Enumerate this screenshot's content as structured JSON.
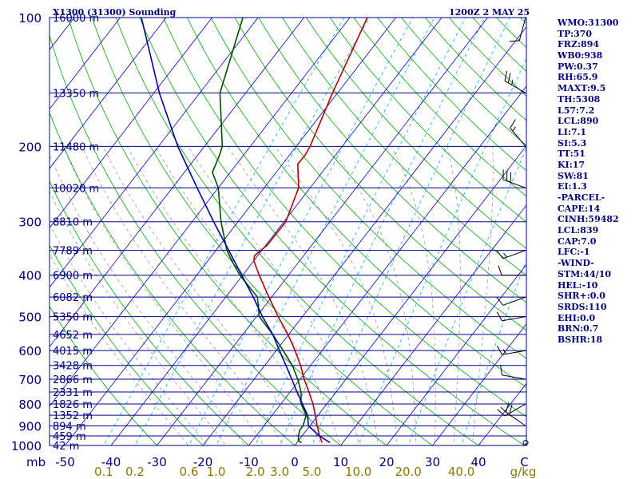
{
  "header": {
    "station_title": "X1300 (31300) Sounding",
    "valid_time": "1200Z  2 MAY 25"
  },
  "indices": [
    "WMO:31300",
    "TP:370",
    "FRZ:894",
    "WB0:938",
    "PW:0.37",
    "RH:65.9",
    "MAXT:9.5",
    "TH:5308",
    "L57:7.2",
    "LCL:890",
    "LI:7.1",
    "SI:5.3",
    "TT:51",
    "KI:17",
    "SW:81",
    "EI:1.3",
    "-PARCEL-",
    "CAPE:14",
    "CINH:59482",
    "LCL:839",
    "CAP:7.0",
    "LFC:-1",
    "-WIND-",
    "STM:44/10",
    "HEL:-10",
    "SHR+:0.0",
    "SRDS:110",
    "EHI:0.0",
    "BRN:0.7",
    "BSHR:18"
  ],
  "chart_data": {
    "type": "line",
    "chart_kind": "skew-T log-P sounding",
    "y_axis": {
      "label": "mb",
      "scale": "log",
      "range": [
        1000,
        100
      ],
      "pressure_ticks": [
        100,
        200,
        300,
        400,
        500,
        600,
        700,
        800,
        900,
        1000
      ],
      "height_labels": [
        {
          "p": 100,
          "label": "16000 m"
        },
        {
          "p": 150,
          "label": "13350 m"
        },
        {
          "p": 200,
          "label": "11480 m"
        },
        {
          "p": 250,
          "label": "10020 m"
        },
        {
          "p": 300,
          "label": "8810 m"
        },
        {
          "p": 350,
          "label": "7789 m"
        },
        {
          "p": 400,
          "label": "6900 m"
        },
        {
          "p": 450,
          "label": "6082 m"
        },
        {
          "p": 500,
          "label": "5350 m"
        },
        {
          "p": 550,
          "label": "4652 m"
        },
        {
          "p": 600,
          "label": "4015 m"
        },
        {
          "p": 650,
          "label": "3428 m"
        },
        {
          "p": 700,
          "label": "2866 m"
        },
        {
          "p": 750,
          "label": "2331 m"
        },
        {
          "p": 800,
          "label": "1826 m"
        },
        {
          "p": 850,
          "label": "1352 m"
        },
        {
          "p": 900,
          "label": "894 m"
        },
        {
          "p": 950,
          "label": "459 m"
        },
        {
          "p": 1000,
          "label": "42 m"
        }
      ]
    },
    "x_axis": {
      "temperature_ticks": [
        "-50",
        "-40",
        "-30",
        "-20",
        "-10",
        "0",
        "10",
        "20",
        "30",
        "40",
        "C"
      ],
      "mixing_ratio_ticks": [
        "0.1",
        "0.2",
        "0.6",
        "1.0",
        "2.0",
        "3.0",
        "5.0",
        "10.0",
        "20.0",
        "40.0",
        "g/kg"
      ]
    },
    "series": [
      {
        "color": "#b00000",
        "values": [
          {
            "p": 985,
            "t": 5.5
          },
          {
            "p": 950,
            "t": 3.8
          },
          {
            "p": 900,
            "t": 1.6
          },
          {
            "p": 850,
            "t": -0.6
          },
          {
            "p": 800,
            "t": -3.0
          },
          {
            "p": 750,
            "t": -5.9
          },
          {
            "p": 700,
            "t": -9.1
          },
          {
            "p": 650,
            "t": -12.2
          },
          {
            "p": 600,
            "t": -15.9
          },
          {
            "p": 550,
            "t": -20.2
          },
          {
            "p": 500,
            "t": -25.3
          },
          {
            "p": 450,
            "t": -30.6
          },
          {
            "p": 400,
            "t": -36.4
          },
          {
            "p": 370,
            "t": -40.0
          },
          {
            "p": 360,
            "t": -40.7
          },
          {
            "p": 340,
            "t": -39.7
          },
          {
            "p": 300,
            "t": -39.6
          },
          {
            "p": 250,
            "t": -42.5
          },
          {
            "p": 220,
            "t": -46.7
          },
          {
            "p": 210,
            "t": -46.6
          },
          {
            "p": 200,
            "t": -47.0
          },
          {
            "p": 150,
            "t": -51.1
          },
          {
            "p": 100,
            "t": -56.2
          }
        ]
      },
      {
        "color": "#005000",
        "values": [
          {
            "p": 985,
            "t": 1.0
          },
          {
            "p": 975,
            "t": 0.0
          },
          {
            "p": 950,
            "t": -0.8
          },
          {
            "p": 920,
            "t": -1.5
          },
          {
            "p": 900,
            "t": -1.5
          },
          {
            "p": 850,
            "t": -2.6
          },
          {
            "p": 800,
            "t": -5.6
          },
          {
            "p": 750,
            "t": -7.6
          },
          {
            "p": 700,
            "t": -10.5
          },
          {
            "p": 650,
            "t": -14.0
          },
          {
            "p": 600,
            "t": -18.5
          },
          {
            "p": 550,
            "t": -23.5
          },
          {
            "p": 500,
            "t": -29.4
          },
          {
            "p": 450,
            "t": -33.1
          },
          {
            "p": 400,
            "t": -40.6
          },
          {
            "p": 370,
            "t": -44.8
          },
          {
            "p": 350,
            "t": -47.6
          },
          {
            "p": 300,
            "t": -53.7
          },
          {
            "p": 250,
            "t": -60.0
          },
          {
            "p": 230,
            "t": -63.9
          },
          {
            "p": 210,
            "t": -65.2
          },
          {
            "p": 200,
            "t": -66.1
          },
          {
            "p": 150,
            "t": -75.6
          },
          {
            "p": 100,
            "t": -83.3
          }
        ]
      },
      {
        "color": "#0000a0",
        "values": [
          {
            "p": 985,
            "t": 7.2
          },
          {
            "p": 950,
            "t": 3.8
          },
          {
            "p": 900,
            "t": -0.3
          },
          {
            "p": 850,
            "t": -2.3
          },
          {
            "p": 800,
            "t": -5.3
          },
          {
            "p": 750,
            "t": -8.5
          },
          {
            "p": 700,
            "t": -11.8
          },
          {
            "p": 650,
            "t": -15.4
          },
          {
            "p": 600,
            "t": -19.3
          },
          {
            "p": 550,
            "t": -23.5
          },
          {
            "p": 500,
            "t": -28.7
          },
          {
            "p": 450,
            "t": -34.0
          },
          {
            "p": 400,
            "t": -40.2
          },
          {
            "p": 350,
            "t": -47.2
          },
          {
            "p": 300,
            "t": -55.3
          },
          {
            "p": 250,
            "t": -64.6
          },
          {
            "p": 200,
            "t": -75.8
          },
          {
            "p": 150,
            "t": -88.8
          },
          {
            "p": 100,
            "t": -105.4
          }
        ]
      }
    ],
    "wind_barbs": [
      {
        "p": 100,
        "dir": 195,
        "speed": 10
      },
      {
        "p": 150,
        "dir": 300,
        "speed": 25
      },
      {
        "p": 200,
        "dir": 320,
        "speed": 15
      },
      {
        "p": 250,
        "dir": 290,
        "speed": 30
      },
      {
        "p": 350,
        "dir": 250,
        "speed": 15
      },
      {
        "p": 400,
        "dir": 270,
        "speed": 10
      },
      {
        "p": 450,
        "dir": 250,
        "speed": 10
      },
      {
        "p": 500,
        "dir": 260,
        "speed": 10
      },
      {
        "p": 600,
        "dir": 260,
        "speed": 15
      },
      {
        "p": 700,
        "dir": 280,
        "speed": 10
      },
      {
        "p": 800,
        "dir": 240,
        "speed": 20
      },
      {
        "p": 900,
        "dir": 305,
        "speed": 20
      },
      {
        "p": 985,
        "dir": 0,
        "speed": 0
      }
    ],
    "grid": true,
    "colors": {
      "isobar": "#00008b",
      "isotherm": "#0000cd",
      "dry_adiabat": "#00aa00",
      "moist_adiabat": "#999999",
      "mixing_ratio": "#00aaff",
      "label": "#00007a",
      "mixing_ratio_label": "#8b7a00",
      "wind_barb": "#000000"
    }
  }
}
